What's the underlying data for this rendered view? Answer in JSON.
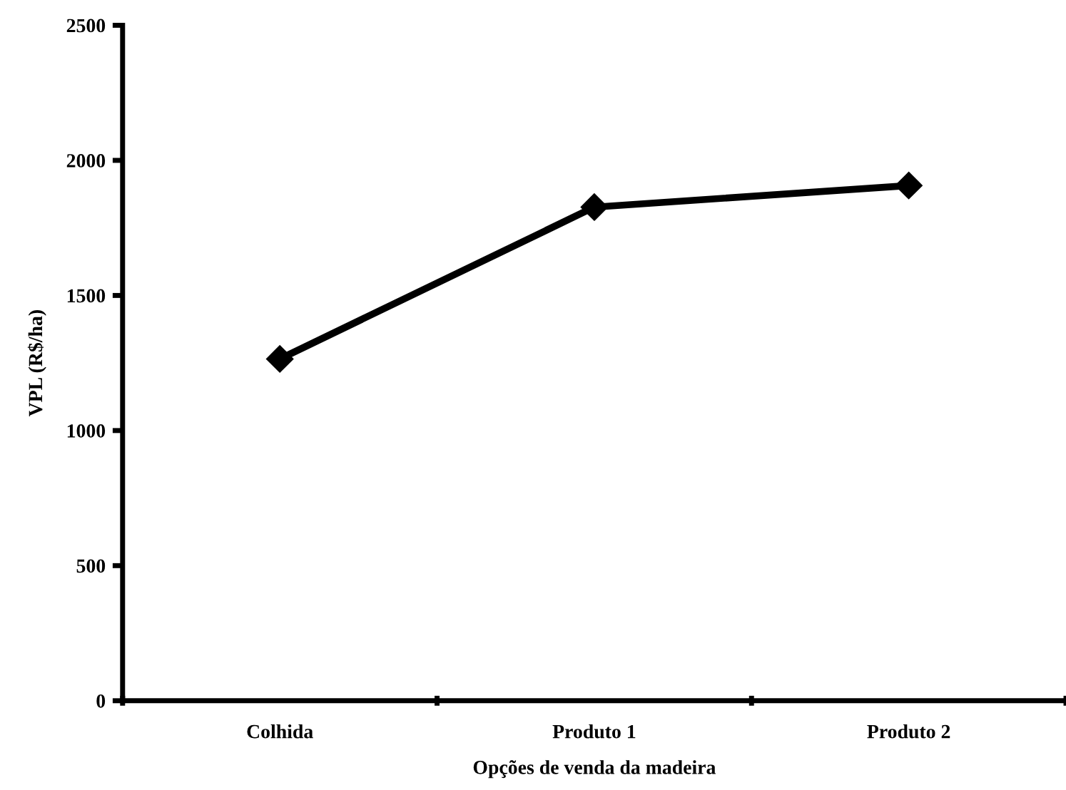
{
  "chart_data": {
    "type": "line",
    "xlabel": "Opções de venda da madeira",
    "ylabel": "VPL (R$/ha)",
    "categories": [
      "Colhida",
      "Produto 1",
      "Produto 2"
    ],
    "series": [
      {
        "color": "#000000",
        "values": [
          1265,
          1827,
          1907
        ]
      }
    ],
    "ylim": [
      0,
      2500
    ],
    "yticks": [
      0,
      500,
      1000,
      1500,
      2000,
      2500
    ],
    "grid": false,
    "legend": false,
    "marker": "diamond",
    "line_style": "solid"
  }
}
